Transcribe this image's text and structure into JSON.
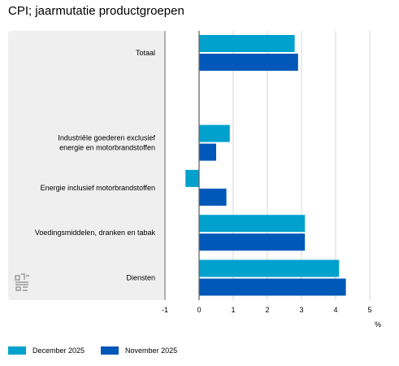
{
  "title": "CPI; jaarmutatie productgroepen",
  "unit": "%",
  "colors": {
    "december": "#00a1cd",
    "november": "#0058b8",
    "panel": "#efefef",
    "grid": "#d4d4d4",
    "axis": "#666666"
  },
  "logo_icon": "cbs-logo-icon",
  "chart_data": {
    "type": "bar",
    "orientation": "horizontal",
    "title": "CPI; jaarmutatie productgroepen",
    "xlabel": "%",
    "ylabel": "",
    "xlim": [
      -1,
      5
    ],
    "xticks": [
      -1,
      0,
      1,
      2,
      3,
      4,
      5
    ],
    "categories": [
      [
        "Totaal"
      ],
      [
        "Industriële goederen exclusief",
        "energie en motorbrandstoffen"
      ],
      [
        "Energie inclusief motorbrandstoffen"
      ],
      [
        "Voedingsmiddelen, dranken en tabak"
      ],
      [
        "Diensten"
      ]
    ],
    "series": [
      {
        "name": "December 2025",
        "values": [
          2.8,
          0.9,
          -0.4,
          3.1,
          4.1
        ]
      },
      {
        "name": "November 2025",
        "values": [
          2.9,
          0.5,
          0.8,
          3.1,
          4.3
        ]
      }
    ],
    "grid": true,
    "legend": "bottom-left"
  }
}
